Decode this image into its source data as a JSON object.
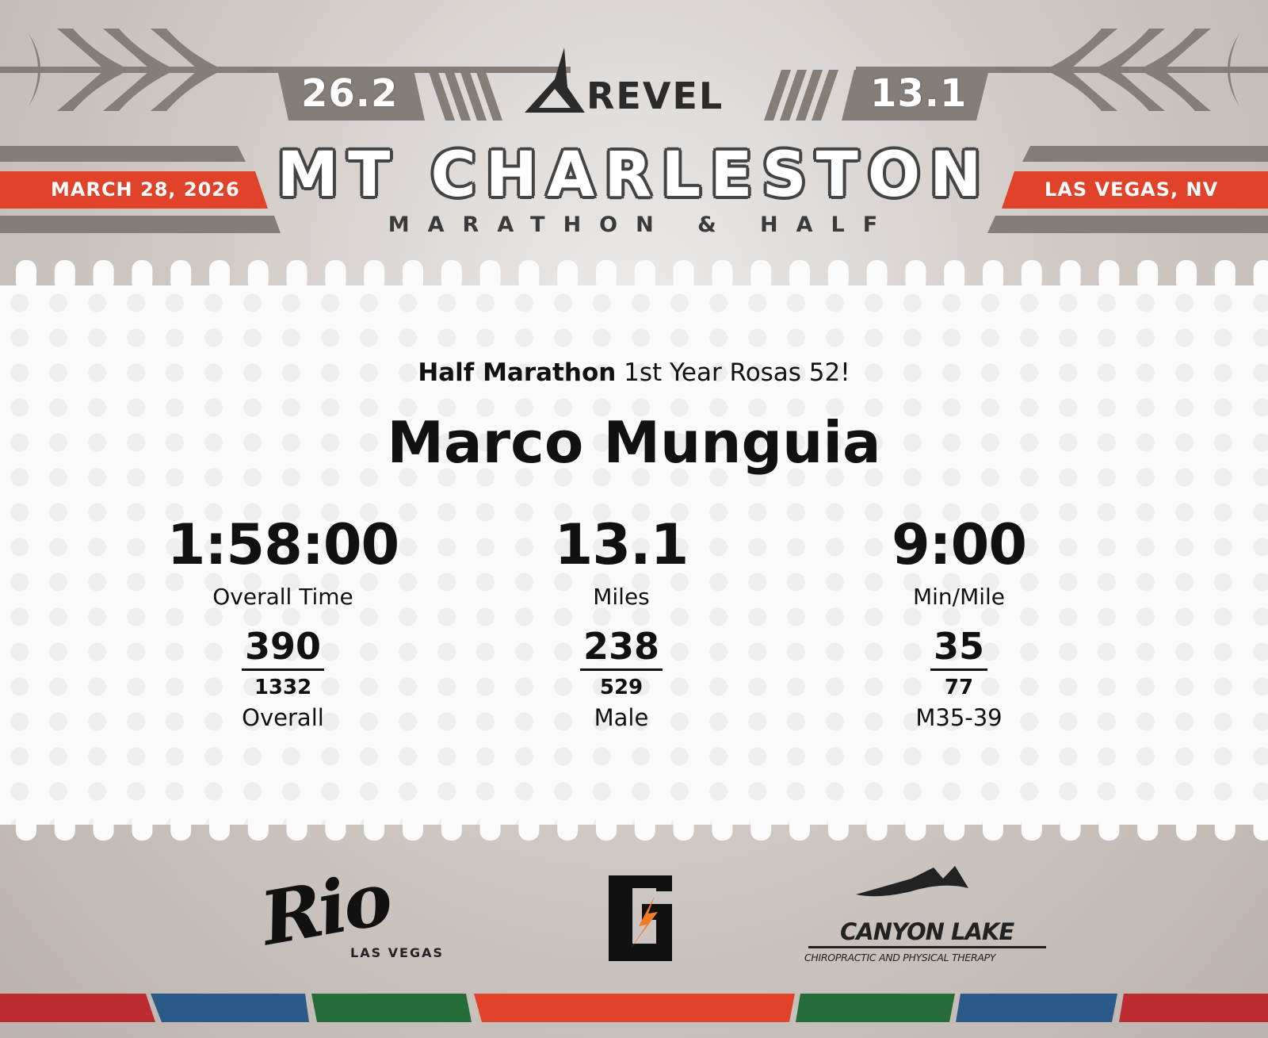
{
  "header": {
    "full_distance": "26.2",
    "half_distance": "13.1",
    "brand": "REVEL",
    "event_title": "MT CHARLESTON",
    "event_subtitle": "MARATHON & HALF",
    "date": "MARCH 28, 2026",
    "location": "LAS VEGAS, NV"
  },
  "result": {
    "race": "Half Marathon",
    "team": "1st Year Rosas 52!",
    "runner_name": "Marco Munguia",
    "stats": [
      {
        "value": "1:58:00",
        "label": "Overall Time"
      },
      {
        "value": "13.1",
        "label": "Miles"
      },
      {
        "value": "9:00",
        "label": "Min/Mile"
      }
    ],
    "ranks": [
      {
        "place": "390",
        "total": "1332",
        "category": "Overall"
      },
      {
        "place": "238",
        "total": "529",
        "category": "Male"
      },
      {
        "place": "35",
        "total": "77",
        "category": "M35-39"
      }
    ]
  },
  "sponsors": {
    "rio": {
      "name": "Rio",
      "sub": "LAS VEGAS"
    },
    "gatorade": {
      "name": "G"
    },
    "canyon": {
      "name": "CANYON LAKE",
      "sub": "CHIROPRACTIC AND PHYSICAL THERAPY"
    }
  },
  "colors": {
    "accent_red": "#e0432a",
    "stripe_red": "#bb2c33",
    "stripe_blue": "#2a5a87",
    "stripe_green": "#266c38",
    "gray": "#857d77"
  }
}
